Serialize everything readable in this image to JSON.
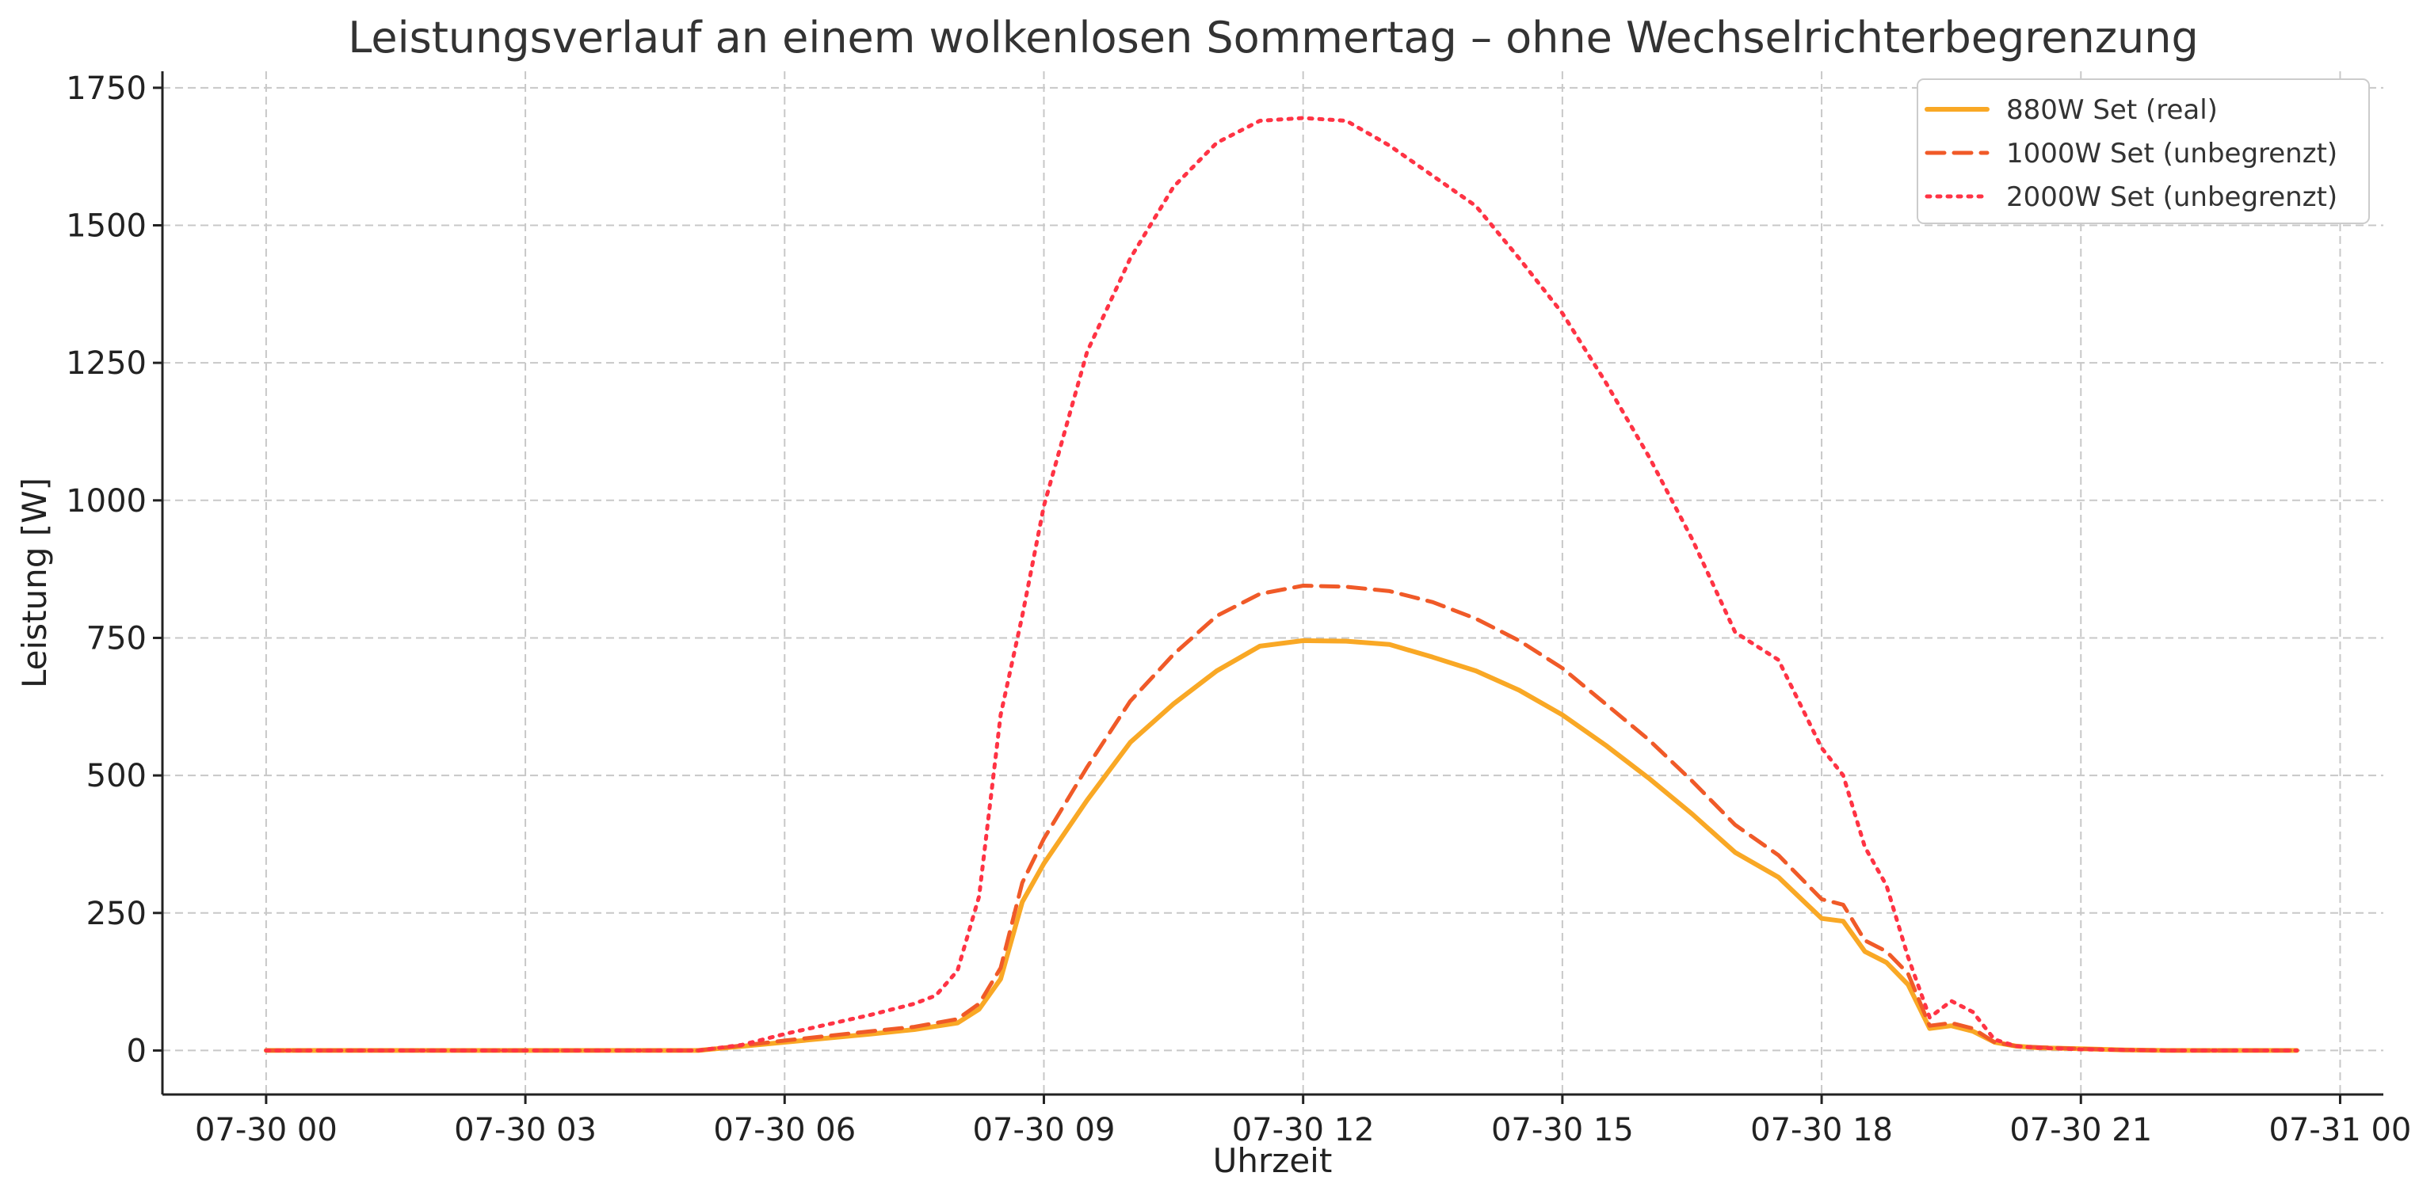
{
  "chart_data": {
    "type": "line",
    "title": "Leistungsverlauf an einem wolkenlosen Sommertag – ohne Wechselrichterbegrenzung",
    "xlabel": "Uhrzeit",
    "ylabel": "Leistung [W]",
    "xlim": [
      -1.2,
      24.5
    ],
    "ylim": [
      -80,
      1780
    ],
    "grid": true,
    "legend_position": "top-right",
    "x_ticks": [
      {
        "value": 0,
        "label": "07-30 00"
      },
      {
        "value": 3,
        "label": "07-30 03"
      },
      {
        "value": 6,
        "label": "07-30 06"
      },
      {
        "value": 9,
        "label": "07-30 09"
      },
      {
        "value": 12,
        "label": "07-30 12"
      },
      {
        "value": 15,
        "label": "07-30 15"
      },
      {
        "value": 18,
        "label": "07-30 18"
      },
      {
        "value": 21,
        "label": "07-30 21"
      },
      {
        "value": 24,
        "label": "07-31 00"
      }
    ],
    "y_ticks": [
      0,
      250,
      500,
      750,
      1000,
      1250,
      1500,
      1750
    ],
    "series": [
      {
        "name": "880W Set (real)",
        "color": "#f9a825",
        "style": "solid",
        "x": [
          0,
          5,
          6,
          7,
          7.5,
          8,
          8.25,
          8.5,
          8.75,
          9,
          9.5,
          10,
          10.5,
          11,
          11.5,
          12,
          12.5,
          13,
          13.5,
          14,
          14.5,
          15,
          15.5,
          16,
          16.5,
          17,
          17.5,
          18,
          18.25,
          18.5,
          18.75,
          19,
          19.25,
          19.5,
          19.75,
          20,
          20.25,
          20.5,
          21,
          21.5,
          22,
          23.5
        ],
        "y": [
          0,
          0,
          15,
          30,
          38,
          50,
          75,
          130,
          270,
          340,
          455,
          560,
          630,
          690,
          735,
          745,
          744,
          738,
          715,
          690,
          655,
          610,
          555,
          495,
          430,
          360,
          315,
          240,
          235,
          180,
          160,
          120,
          40,
          45,
          35,
          15,
          8,
          5,
          3,
          1,
          0,
          0
        ]
      },
      {
        "name": "1000W Set (unbegrenzt)",
        "color": "#f05a28",
        "style": "dashed",
        "x": [
          0,
          5,
          6,
          7,
          7.5,
          8,
          8.25,
          8.5,
          8.75,
          9,
          9.5,
          10,
          10.5,
          11,
          11.5,
          12,
          12.5,
          13,
          13.5,
          14,
          14.5,
          15,
          15.5,
          16,
          16.5,
          17,
          17.5,
          18,
          18.25,
          18.5,
          18.75,
          19,
          19.25,
          19.5,
          19.75,
          20,
          20.25,
          20.5,
          21,
          21.5,
          22,
          23.5
        ],
        "y": [
          0,
          0,
          18,
          35,
          43,
          57,
          85,
          150,
          305,
          385,
          515,
          635,
          720,
          790,
          830,
          845,
          843,
          835,
          815,
          785,
          745,
          695,
          630,
          565,
          490,
          410,
          355,
          275,
          265,
          200,
          180,
          140,
          45,
          50,
          40,
          15,
          8,
          6,
          3,
          1,
          0,
          0
        ]
      },
      {
        "name": "2000W Set (unbegrenzt)",
        "color": "#ff3344",
        "style": "dotted",
        "x": [
          0,
          5,
          5.5,
          6,
          7,
          7.5,
          7.75,
          8,
          8.25,
          8.5,
          8.75,
          9,
          9.5,
          10,
          10.5,
          11,
          11.5,
          12,
          12.5,
          13,
          13.5,
          14,
          14.5,
          15,
          15.5,
          16,
          16.5,
          17,
          17.5,
          18,
          18.25,
          18.5,
          18.75,
          19,
          19.25,
          19.5,
          19.75,
          20,
          20.25,
          20.5,
          21,
          21.5,
          22,
          23.5
        ],
        "y": [
          0,
          0,
          10,
          30,
          65,
          85,
          100,
          145,
          280,
          610,
          790,
          990,
          1270,
          1440,
          1570,
          1650,
          1690,
          1695,
          1690,
          1645,
          1590,
          1535,
          1440,
          1340,
          1215,
          1080,
          930,
          760,
          710,
          550,
          500,
          370,
          300,
          170,
          60,
          90,
          70,
          20,
          8,
          5,
          2,
          1,
          0,
          0
        ]
      }
    ]
  }
}
